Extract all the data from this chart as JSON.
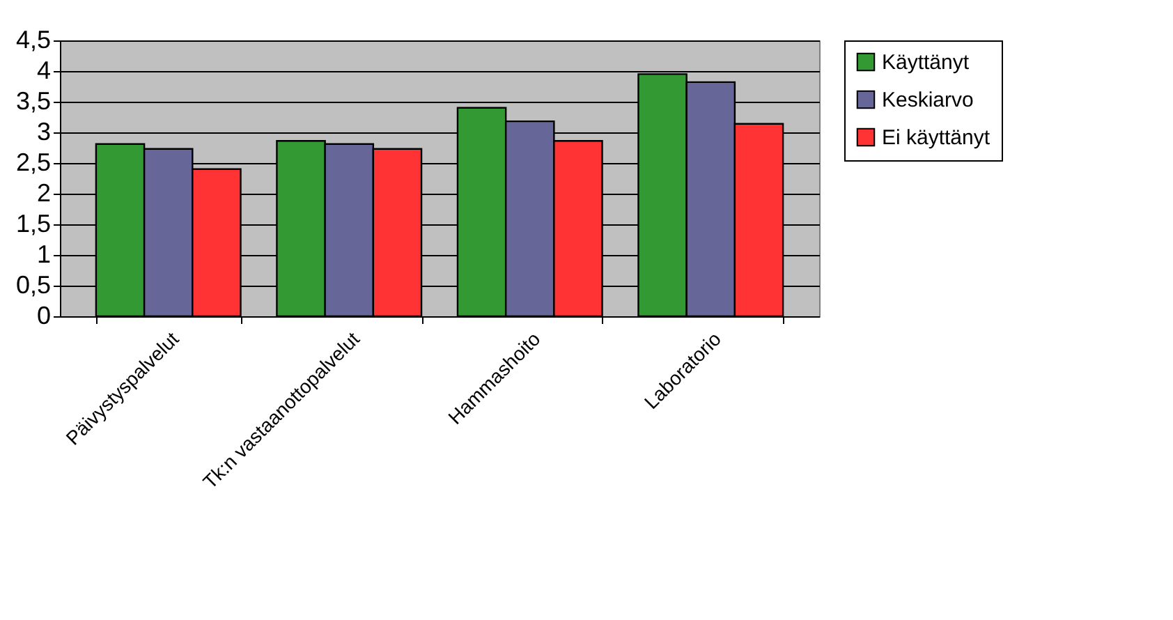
{
  "chart_data": {
    "type": "bar",
    "categories": [
      "Päivystyspalvelut",
      "Tk:n vastaanottopalvelut",
      "Hammashoito",
      "Laboratorio"
    ],
    "series": [
      {
        "name": "Käyttänyt",
        "color": "#339933",
        "values": [
          2.81,
          2.86,
          3.4,
          3.95
        ]
      },
      {
        "name": "Keskiarvo",
        "color": "#666699",
        "values": [
          2.73,
          2.81,
          3.18,
          3.82
        ]
      },
      {
        "name": "Ei käyttänyt",
        "color": "#ff3333",
        "values": [
          2.4,
          2.73,
          2.86,
          3.14
        ]
      }
    ],
    "ylim": [
      0,
      4.5
    ],
    "yticks": [
      0,
      {
        "value": 0.5,
        "label": "0,5"
      },
      1,
      {
        "value": 1.5,
        "label": "1,5"
      },
      2,
      {
        "value": 2.5,
        "label": "2,5"
      },
      3,
      {
        "value": 3.5,
        "label": "3,5"
      },
      4,
      {
        "value": 4.5,
        "label": "4,5"
      }
    ],
    "grid": "y",
    "legend": "right"
  }
}
